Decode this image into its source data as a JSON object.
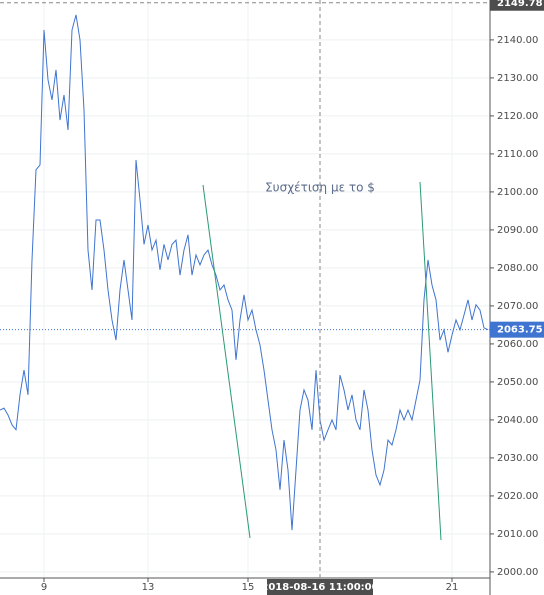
{
  "chart_data": {
    "type": "line",
    "annotation": "Συσχέτιση με το  $",
    "categories": [
      null,
      null,
      null,
      null,
      null,
      null,
      null,
      null,
      null,
      null,
      null,
      "9",
      null,
      null,
      null,
      null,
      null,
      null,
      null,
      null,
      null,
      null,
      null,
      null,
      null,
      null,
      null,
      null,
      null,
      null,
      null,
      null,
      null,
      null,
      null,
      null,
      null,
      "13",
      null,
      null,
      null,
      null,
      null,
      null,
      null,
      null,
      null,
      null,
      null,
      null,
      null,
      null,
      null,
      null,
      null,
      null,
      null,
      null,
      null,
      null,
      null,
      null,
      "15",
      null,
      null,
      null,
      null,
      null,
      null,
      null,
      null,
      null,
      null,
      null,
      null,
      null,
      null,
      null,
      null,
      null,
      "2018-08-16 11:00:00",
      null,
      null,
      null,
      null,
      null,
      null,
      null,
      null,
      null,
      null,
      null,
      null,
      null,
      null,
      null,
      null,
      null,
      null,
      null,
      null,
      null,
      null,
      null,
      null,
      null,
      null,
      null,
      null,
      null,
      null,
      null,
      null,
      "21",
      null,
      null,
      null,
      null,
      null,
      null,
      null,
      null,
      null
    ],
    "series": [
      {
        "color": "#3f74d0",
        "values": [
          2042.6,
          2043.1,
          2041.3,
          2038.7,
          2037.4,
          2046.6,
          2053.1,
          2046.6,
          2082.1,
          2105.8,
          2107.1,
          2142.6,
          2129.5,
          2124.2,
          2132.1,
          2118.9,
          2125.5,
          2116.3,
          2142.6,
          2146.6,
          2140,
          2121.6,
          2084.7,
          2074.2,
          2092.6,
          2092.6,
          2084.7,
          2074.2,
          2066.3,
          2061,
          2074.2,
          2082.1,
          2074.2,
          2066.3,
          2108.4,
          2097.9,
          2086.2,
          2091.3,
          2084.7,
          2087.3,
          2079.5,
          2086.2,
          2082.1,
          2086.2,
          2087.3,
          2078.1,
          2084.7,
          2088.7,
          2078.1,
          2083.4,
          2080.8,
          2083.4,
          2084.7,
          2080.8,
          2078.1,
          2074.2,
          2075.5,
          2071.6,
          2068.9,
          2055.8,
          2066.3,
          2072.9,
          2066.3,
          2068.9,
          2063.7,
          2059.7,
          2053.1,
          2045.2,
          2037.4,
          2032.1,
          2021.6,
          2034.7,
          2026.8,
          2011,
          2026.8,
          2042.6,
          2047.9,
          2045.2,
          2037.4,
          2053.1,
          2040,
          2034.7,
          2037.4,
          2040,
          2037.4,
          2051.8,
          2047.9,
          2042.6,
          2046.6,
          2040,
          2037.4,
          2047.9,
          2042.6,
          2032.1,
          2025.5,
          2022.9,
          2026.8,
          2034.7,
          2033.4,
          2037.4,
          2042.6,
          2040,
          2042.6,
          2040,
          2045.2,
          2050.5,
          2071.6,
          2082.1,
          2075.5,
          2071.6,
          2061,
          2063.7,
          2057.8,
          2062.3,
          2066.3,
          2063.7,
          2067.6,
          2071.6,
          2066.3,
          2070.3,
          2068.9,
          2064.2,
          2063.75
        ]
      }
    ],
    "ylim": [
      1998.4,
      2150.5
    ],
    "yticks": [
      {
        "value": 2000,
        "label": "2000.00"
      },
      {
        "value": 2010,
        "label": "2010.00"
      },
      {
        "value": 2020,
        "label": "2020.00"
      },
      {
        "value": 2030,
        "label": "2030.00"
      },
      {
        "value": 2040,
        "label": "2040.00"
      },
      {
        "value": 2050,
        "label": "2050.00"
      },
      {
        "value": 2060,
        "label": "2060.00"
      },
      {
        "value": 2070,
        "label": "2070.00"
      },
      {
        "value": 2080,
        "label": "2080.00"
      },
      {
        "value": 2090,
        "label": "2090.00"
      },
      {
        "value": 2100,
        "label": "2100.00"
      },
      {
        "value": 2110,
        "label": "2110.00"
      },
      {
        "value": 2120,
        "label": "2120.00"
      },
      {
        "value": 2130,
        "label": "2130.00"
      },
      {
        "value": 2140,
        "label": "2140.00"
      }
    ],
    "last_price": 2063.75,
    "crosshair": {
      "x": "2018-08-16 11:00:00",
      "y": 2149.78
    },
    "grid": true
  }
}
